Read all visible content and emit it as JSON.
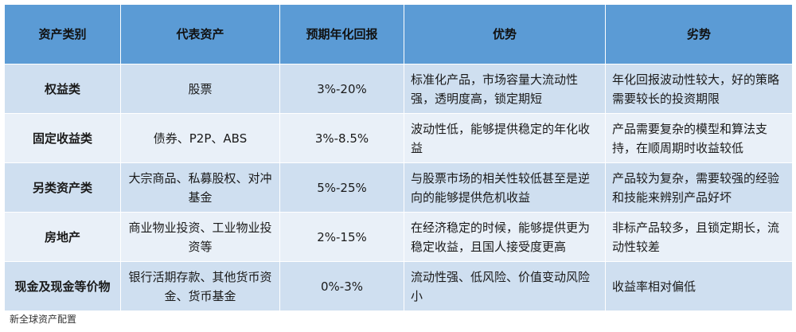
{
  "header": {
    "category": "资产类别",
    "asset": "代表资产",
    "return": "预期年化回报",
    "advantage": "优势",
    "disadvantage": "劣势"
  },
  "rows": [
    {
      "category": "权益类",
      "asset": "股票",
      "return": "3%-20%",
      "advantage": "标准化产品，市场容量大流动性强，透明度高，锁定期短",
      "disadvantage": "年化回报波动性较大，好的策略需要较长的投资期限"
    },
    {
      "category": "固定收益类",
      "asset": "债券、P2P、ABS",
      "return": "3%-8.5%",
      "advantage": "波动性低，能够提供稳定的年化收益",
      "disadvantage": "产品需要复杂的模型和算法支持，在顺周期时收益较低"
    },
    {
      "category": "另类资产类",
      "asset": "大宗商品、私募股权、对冲基金",
      "return": "5%-25%",
      "advantage": "与股票市场的相关性较低甚至是逆向的能够提供危机收益",
      "disadvantage": "产品较为复杂，需要较强的经验和技能来辨别产品好坏"
    },
    {
      "category": "房地产",
      "asset": "商业物业投资、工业物业投资等",
      "return": "2%-15%",
      "advantage": "在经济稳定的时候，能够提供更为稳定收益，且国人接受度更高",
      "disadvantage": "非标产品较多，且锁定期长，流动性较差"
    },
    {
      "category": "现金及现金等价物",
      "asset": "银行活期存款、其他货币资金、货币基金",
      "return": "0%-3%",
      "advantage": "流动性强、低风险、价值变动风险小",
      "disadvantage": "收益率相对偏低"
    }
  ],
  "source": "新全球资产配置"
}
